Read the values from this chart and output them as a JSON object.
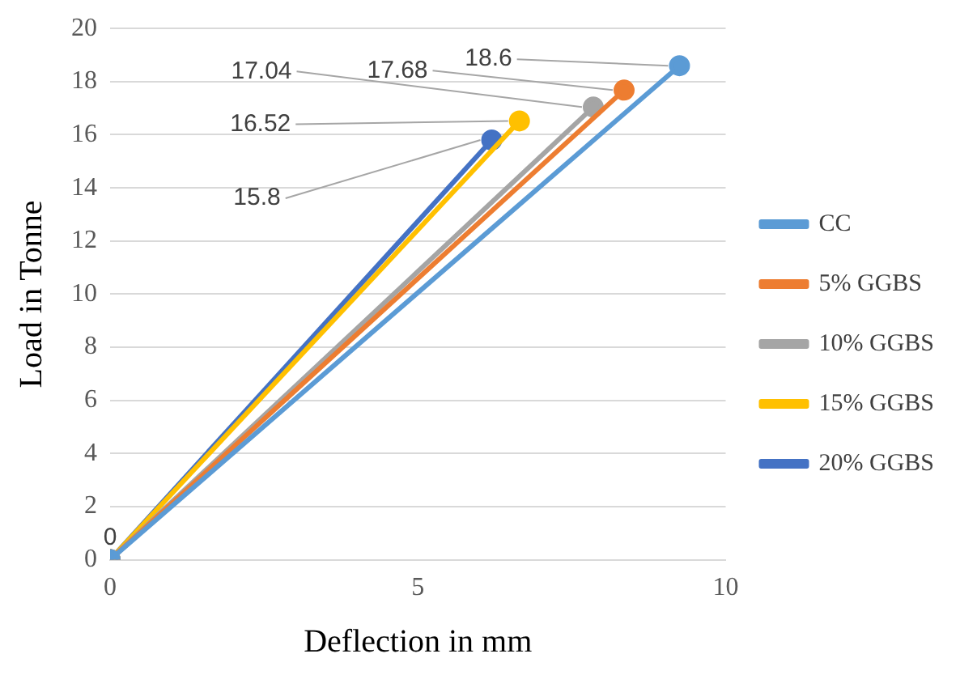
{
  "chart_data": {
    "type": "line",
    "xlabel": "Deflection in mm",
    "ylabel": "Load in Tonne",
    "xlim": [
      0,
      10
    ],
    "xticks": [
      0,
      5,
      10
    ],
    "ylim": [
      0,
      20
    ],
    "yticks": [
      0,
      2,
      4,
      6,
      8,
      10,
      12,
      14,
      16,
      18,
      20
    ],
    "grid": "y",
    "legend": "right",
    "marker": "circle",
    "line_style": "solid",
    "series": [
      {
        "name": "CC",
        "color": "#5b9bd5",
        "x": [
          0,
          9.25
        ],
        "values": [
          0,
          18.6
        ],
        "value_labels": [
          null,
          "18.6"
        ]
      },
      {
        "name": "5% GGBS",
        "color": "#ed7d31",
        "x": [
          0,
          8.35
        ],
        "values": [
          0,
          17.68
        ],
        "value_labels": [
          null,
          "17.68"
        ]
      },
      {
        "name": "10% GGBS",
        "color": "#a5a5a5",
        "x": [
          0,
          7.85
        ],
        "values": [
          0,
          17.04
        ],
        "value_labels": [
          null,
          "17.04"
        ]
      },
      {
        "name": "15% GGBS",
        "color": "#ffc000",
        "x": [
          0,
          6.65
        ],
        "values": [
          0,
          16.52
        ],
        "value_labels": [
          null,
          "16.52"
        ]
      },
      {
        "name": "20% GGBS",
        "color": "#4472c4",
        "x": [
          0,
          6.2
        ],
        "values": [
          0,
          15.8
        ],
        "value_labels": [
          "0",
          "15.8"
        ]
      }
    ]
  }
}
